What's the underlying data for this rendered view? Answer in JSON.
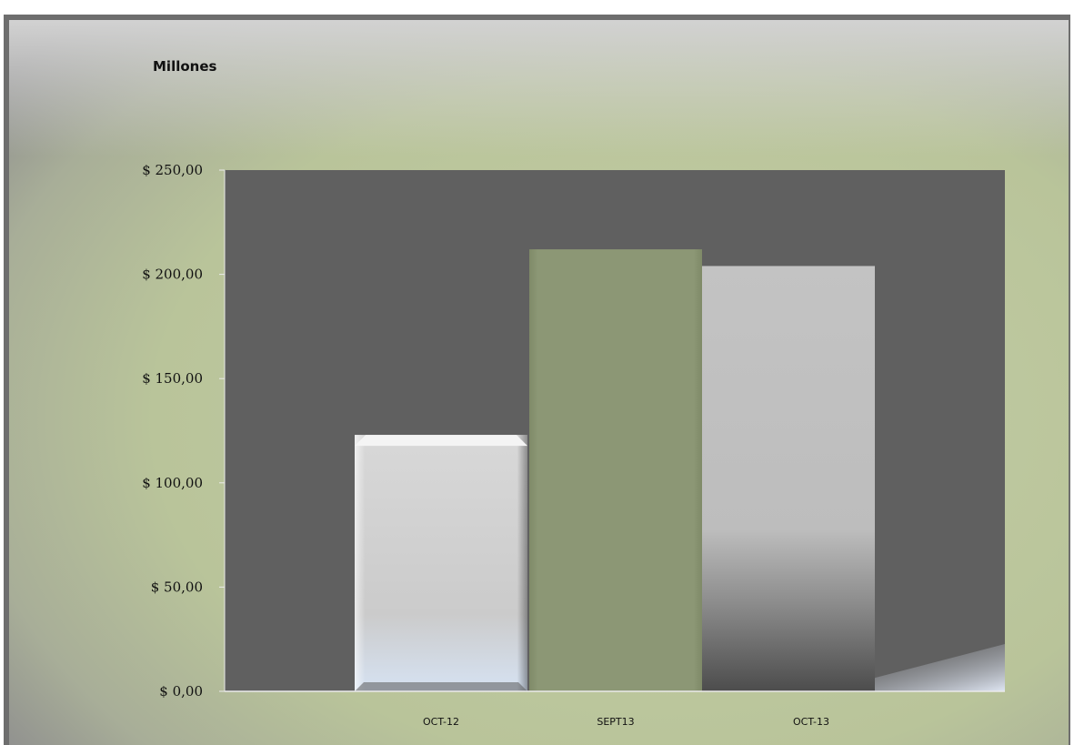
{
  "chart_data": {
    "type": "bar",
    "unit_label": "Millones",
    "categories": [
      "OCT-12",
      "SEPT13",
      "OCT-13"
    ],
    "values": [
      123,
      212,
      204
    ],
    "ylim": [
      0,
      250
    ],
    "yticks": [
      0,
      50,
      100,
      150,
      200,
      250
    ],
    "ytick_labels": [
      "$ 0,00",
      "$ 50,00",
      "$ 100,00",
      "$ 150,00",
      "$ 200,00",
      "$ 250,00"
    ],
    "grid": false,
    "legend": "none",
    "colors": {
      "plot_area": "#606060",
      "frame_bg": "#c2cca4",
      "bar_1": "#cfcfcf",
      "bar_2": "#8c9775",
      "bar_3": "#c0c0c0"
    }
  }
}
